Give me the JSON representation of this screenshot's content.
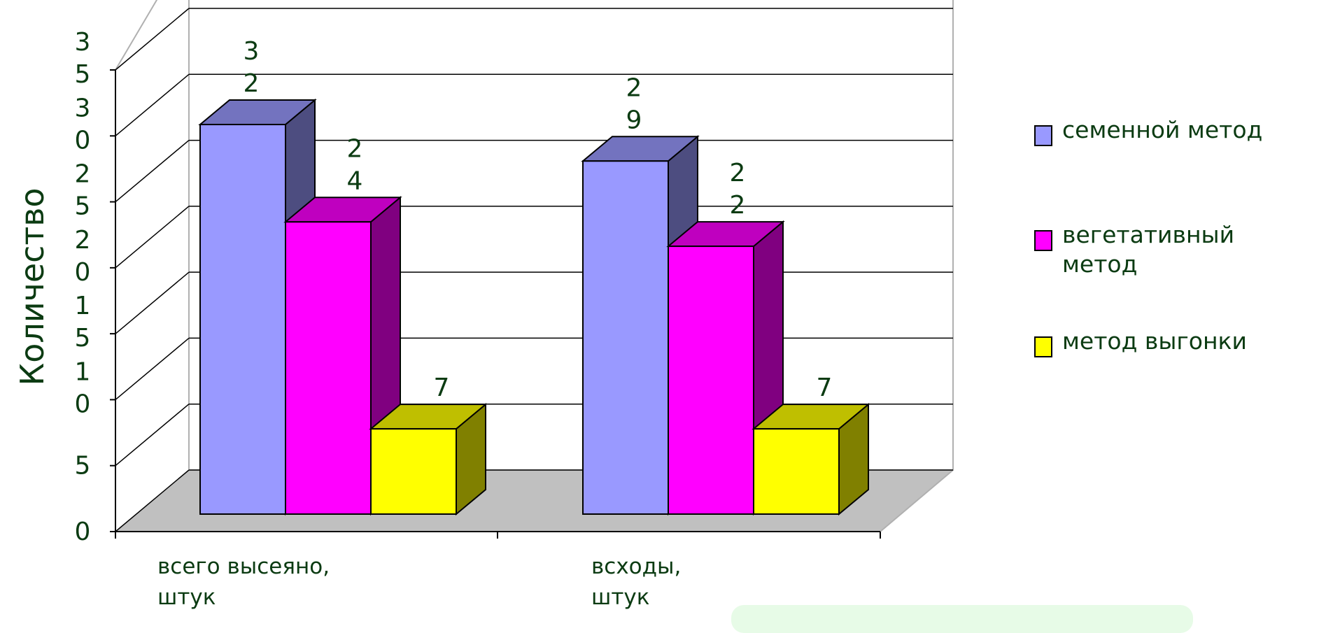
{
  "chart_data": {
    "type": "bar",
    "categories": [
      "всего высеяно, штук",
      "всходы, штук"
    ],
    "series": [
      {
        "name": "семенной метод",
        "values": [
          32,
          29
        ],
        "color": "#9999ff",
        "data_labels": [
          "3\n2",
          "2\n9"
        ]
      },
      {
        "name": "вегетативный метод",
        "values": [
          24,
          22
        ],
        "color": "#ff00ff",
        "data_labels": [
          "2\n4",
          "2\n2"
        ]
      },
      {
        "name": "метод выгонки",
        "values": [
          7,
          7
        ],
        "color": "#ffff00",
        "data_labels": [
          "7",
          "7"
        ]
      }
    ],
    "ylabel": "Количество",
    "ylim": [
      0,
      35
    ],
    "ytick_labels": [
      "0",
      "5",
      "1\n0",
      "1\n5",
      "2\n0",
      "2\n5",
      "3\n0",
      "3\n5"
    ],
    "grid": true,
    "legend_position": "right",
    "style": "3d-clustered-column"
  },
  "legend_items": [
    {
      "label": "семенной метод",
      "color": "#9999ff"
    },
    {
      "label": "вегетативный метод",
      "color": "#ff00ff"
    },
    {
      "label": "метод выгонки",
      "color": "#ffff00"
    }
  ]
}
